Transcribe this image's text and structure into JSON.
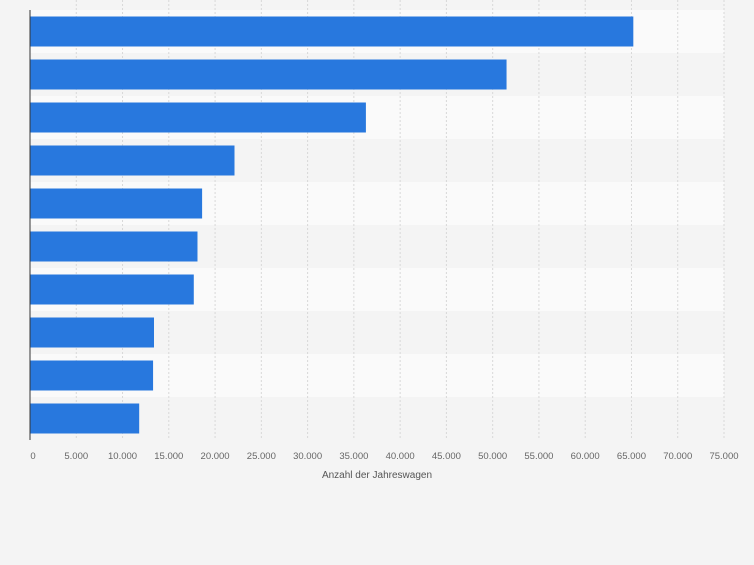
{
  "chart_data": {
    "type": "bar",
    "orientation": "horizontal",
    "categories": [
      "",
      "",
      "",
      "",
      "",
      "",
      "",
      "",
      "",
      ""
    ],
    "values": [
      65200,
      51500,
      36300,
      22100,
      18600,
      18100,
      17700,
      13400,
      13300,
      11800
    ],
    "title": "",
    "xlabel": "Anzahl der Jahreswagen",
    "ylabel": "",
    "xlim": [
      0,
      75000
    ],
    "ticks": [
      0,
      5000,
      10000,
      15000,
      20000,
      25000,
      30000,
      35000,
      40000,
      45000,
      50000,
      55000,
      60000,
      65000,
      70000,
      75000
    ],
    "tick_labels": [
      "0",
      "5.000",
      "10.000",
      "15.000",
      "20.000",
      "25.000",
      "30.000",
      "35.000",
      "40.000",
      "45.000",
      "50.000",
      "55.000",
      "60.000",
      "65.000",
      "70.000",
      "75.000"
    ],
    "grid": true,
    "legend": "none",
    "colors": {
      "bar": "#2878de",
      "background": "#f4f4f4",
      "band_light": "#fafafa",
      "band_dark": "#f4f4f4",
      "grid": "#d8d8d8",
      "axis": "#333333",
      "tick_text": "#666666",
      "label_text": "#555555"
    }
  }
}
